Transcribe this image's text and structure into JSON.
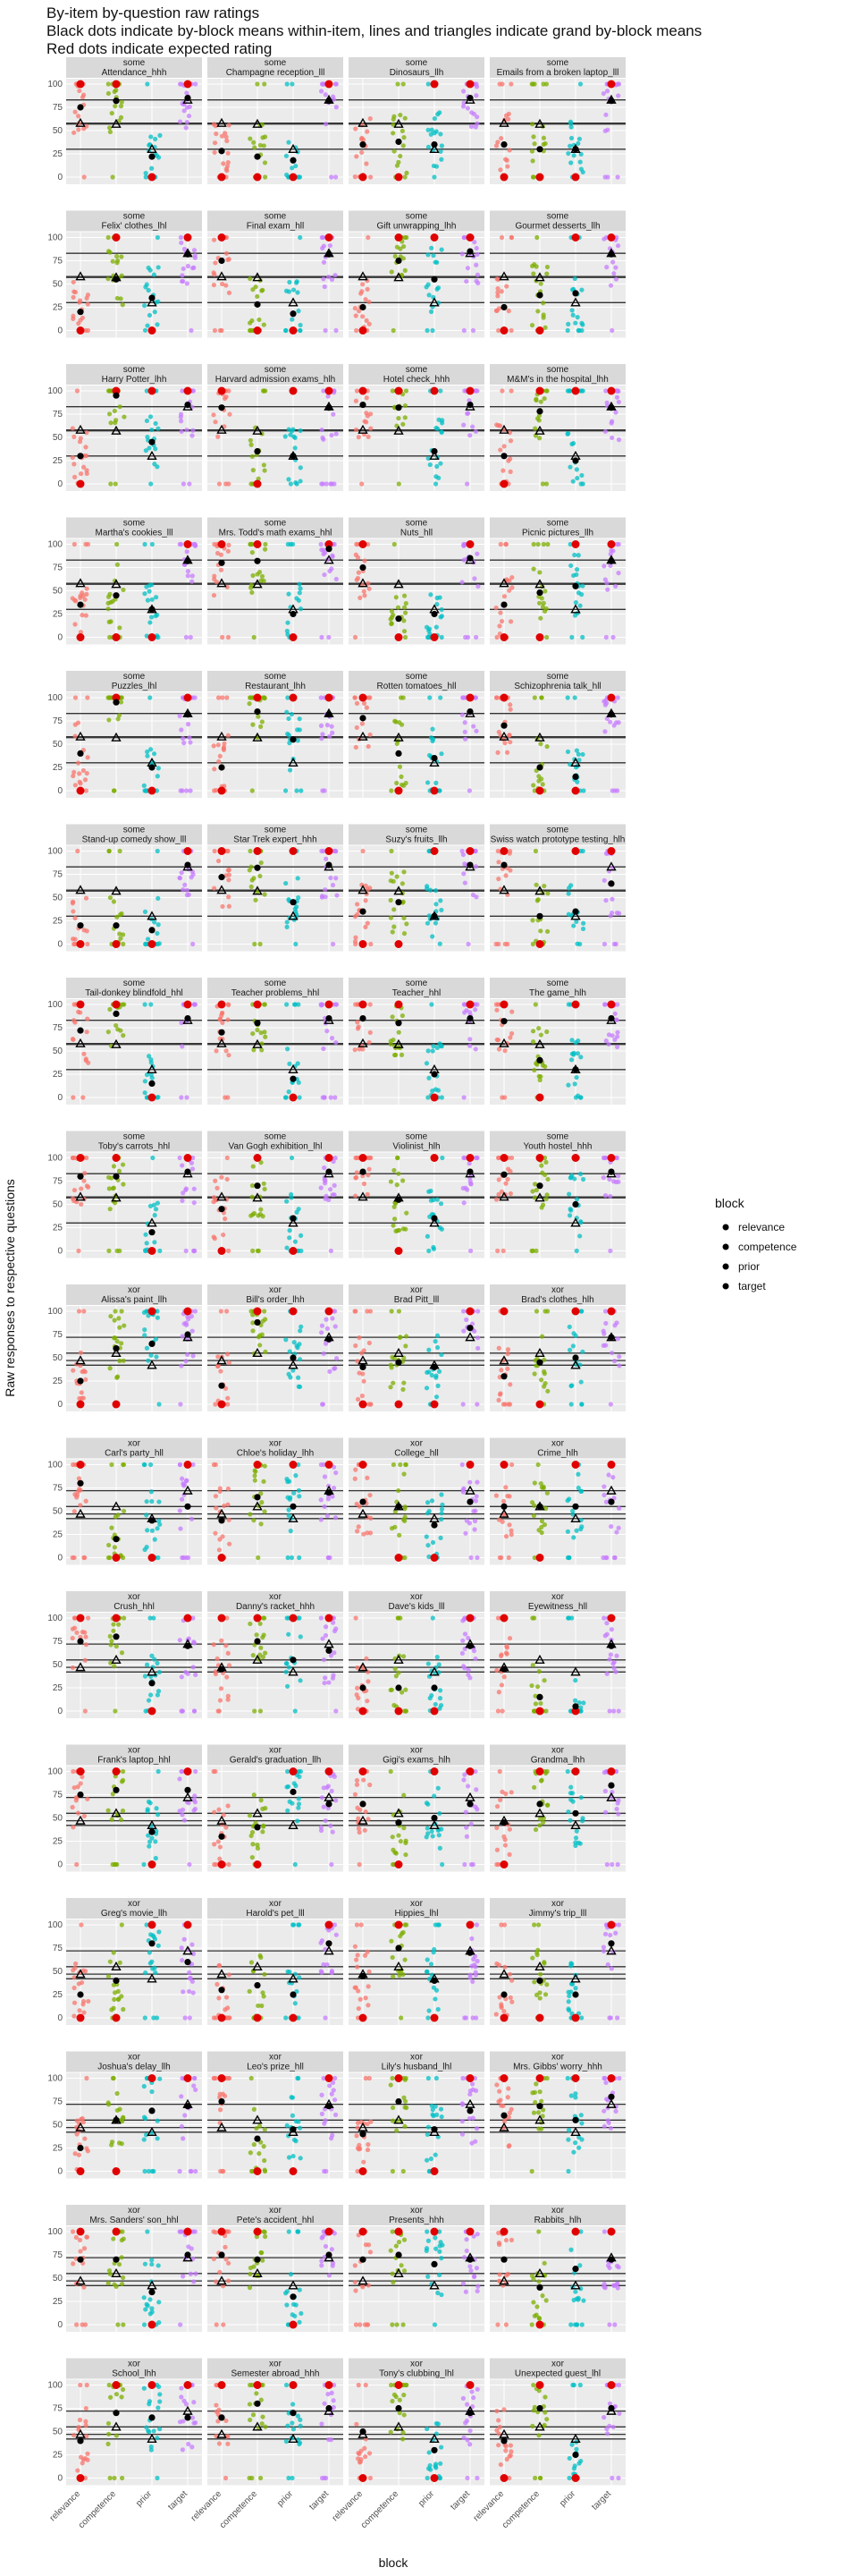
{
  "chart_data": {
    "type": "scatter",
    "title_lines": [
      "By-item by-question raw ratings",
      "Black dots indicate by-block means within-item, lines and triangles indicate grand by-block means",
      "Red dots indicate expected rating"
    ],
    "xlabel": "block",
    "ylabel": "Raw responses to respective questions",
    "categories": [
      "relevance",
      "competence",
      "prior",
      "target"
    ],
    "yticks": [
      0,
      25,
      50,
      75,
      100
    ],
    "ylim": [
      0,
      100
    ],
    "grid": true,
    "legend": {
      "title": "block",
      "entries": [
        "relevance",
        "competence",
        "prior",
        "target"
      ],
      "position": "right"
    },
    "colors": {
      "relevance": "#F8766D",
      "competence": "#7CAE00",
      "prior": "#00BFC4",
      "target": "#C77CFF",
      "expected": "#E00000",
      "mean": "#000000",
      "panel_bg": "#EBEBEB",
      "strip_bg": "#D9D9D9"
    },
    "grand_means": {
      "some": [
        58,
        57,
        30,
        83
      ],
      "xor": [
        47,
        55,
        42,
        72
      ]
    },
    "facets": [
      {
        "group": "some",
        "item": "Attendance_hhh",
        "means": [
          75,
          82,
          22,
          85
        ],
        "expected": [
          100,
          100,
          0,
          100
        ]
      },
      {
        "group": "some",
        "item": "Champagne reception_lll",
        "means": [
          28,
          22,
          18,
          82
        ],
        "expected": [
          0,
          0,
          0,
          100
        ]
      },
      {
        "group": "some",
        "item": "Dinosaurs_llh",
        "means": [
          35,
          38,
          35,
          85
        ],
        "expected": [
          0,
          0,
          100,
          100
        ]
      },
      {
        "group": "some",
        "item": "Emails from a broken laptop_lll",
        "means": [
          35,
          30,
          30,
          82
        ],
        "expected": [
          0,
          0,
          0,
          100
        ]
      },
      {
        "group": "some",
        "item": "Felix' clothes_lhl",
        "means": [
          20,
          55,
          35,
          82
        ],
        "expected": [
          0,
          100,
          0,
          100
        ]
      },
      {
        "group": "some",
        "item": "Final exam_hll",
        "means": [
          75,
          28,
          18,
          82
        ],
        "expected": [
          100,
          0,
          0,
          100
        ]
      },
      {
        "group": "some",
        "item": "Gift unwrapping_lhh",
        "means": [
          25,
          75,
          55,
          85
        ],
        "expected": [
          0,
          100,
          100,
          100
        ]
      },
      {
        "group": "some",
        "item": "Gourmet desserts_llh",
        "means": [
          25,
          38,
          40,
          82
        ],
        "expected": [
          0,
          0,
          100,
          100
        ]
      },
      {
        "group": "some",
        "item": "Harry Potter_lhh",
        "means": [
          30,
          95,
          45,
          85
        ],
        "expected": [
          0,
          100,
          100,
          100
        ]
      },
      {
        "group": "some",
        "item": "Harvard admission exams_hlh",
        "means": [
          82,
          35,
          30,
          82
        ],
        "expected": [
          100,
          0,
          100,
          100
        ]
      },
      {
        "group": "some",
        "item": "Hotel check_hhh",
        "means": [
          85,
          82,
          35,
          85
        ],
        "expected": [
          100,
          100,
          100,
          100
        ]
      },
      {
        "group": "some",
        "item": "M&M's in the hospital_lhh",
        "means": [
          30,
          78,
          25,
          82
        ],
        "expected": [
          0,
          100,
          100,
          100
        ]
      },
      {
        "group": "some",
        "item": "Martha's cookies_lll",
        "means": [
          35,
          45,
          30,
          82
        ],
        "expected": [
          0,
          0,
          0,
          100
        ]
      },
      {
        "group": "some",
        "item": "Mrs. Todd's math exams_hhl",
        "means": [
          80,
          82,
          25,
          95
        ],
        "expected": [
          100,
          100,
          0,
          100
        ]
      },
      {
        "group": "some",
        "item": "Nuts_hll",
        "means": [
          75,
          20,
          25,
          85
        ],
        "expected": [
          100,
          0,
          0,
          100
        ]
      },
      {
        "group": "some",
        "item": "Picnic pictures_llh",
        "means": [
          35,
          48,
          55,
          82
        ],
        "expected": [
          0,
          0,
          100,
          100
        ]
      },
      {
        "group": "some",
        "item": "Puzzles_lhl",
        "means": [
          40,
          95,
          25,
          82
        ],
        "expected": [
          0,
          100,
          0,
          100
        ]
      },
      {
        "group": "some",
        "item": "Restaurant_lhh",
        "means": [
          25,
          85,
          55,
          82
        ],
        "expected": [
          0,
          100,
          100,
          100
        ]
      },
      {
        "group": "some",
        "item": "Rotten tomatoes_hll",
        "means": [
          78,
          40,
          35,
          85
        ],
        "expected": [
          100,
          0,
          0,
          100
        ]
      },
      {
        "group": "some",
        "item": "Schizophrenia talk_hll",
        "means": [
          70,
          25,
          15,
          82
        ],
        "expected": [
          100,
          0,
          0,
          100
        ]
      },
      {
        "group": "some",
        "item": "Stand-up comedy show_lll",
        "means": [
          20,
          20,
          15,
          85
        ],
        "expected": [
          0,
          0,
          0,
          100
        ]
      },
      {
        "group": "some",
        "item": "Star Trek expert_hhh",
        "means": [
          72,
          82,
          45,
          85
        ],
        "expected": [
          100,
          100,
          100,
          100
        ]
      },
      {
        "group": "some",
        "item": "Suzy's fruits_llh",
        "means": [
          35,
          45,
          30,
          85
        ],
        "expected": [
          0,
          0,
          100,
          100
        ]
      },
      {
        "group": "some",
        "item": "Swiss watch prototype testing_hlh",
        "means": [
          85,
          30,
          35,
          65
        ],
        "expected": [
          100,
          0,
          100,
          100
        ]
      },
      {
        "group": "some",
        "item": "Tail-donkey blindfold_hhl",
        "means": [
          72,
          90,
          15,
          85
        ],
        "expected": [
          100,
          100,
          0,
          100
        ]
      },
      {
        "group": "some",
        "item": "Teacher problems_hhl",
        "means": [
          70,
          80,
          20,
          85
        ],
        "expected": [
          100,
          100,
          0,
          100
        ]
      },
      {
        "group": "some",
        "item": "Teacher_hhl",
        "means": [
          85,
          80,
          25,
          85
        ],
        "expected": [
          100,
          100,
          0,
          100
        ]
      },
      {
        "group": "some",
        "item": "The game_hlh",
        "means": [
          82,
          40,
          30,
          85
        ],
        "expected": [
          100,
          0,
          100,
          100
        ]
      },
      {
        "group": "some",
        "item": "Toby's carrots_hhl",
        "means": [
          80,
          80,
          20,
          85
        ],
        "expected": [
          100,
          100,
          0,
          100
        ]
      },
      {
        "group": "some",
        "item": "Van Gogh exhibition_lhl",
        "means": [
          45,
          70,
          35,
          85
        ],
        "expected": [
          0,
          100,
          0,
          100
        ]
      },
      {
        "group": "some",
        "item": "Violinist_hlh",
        "means": [
          85,
          55,
          35,
          85
        ],
        "expected": [
          100,
          0,
          100,
          100
        ]
      },
      {
        "group": "some",
        "item": "Youth hostel_hhh",
        "means": [
          82,
          70,
          50,
          85
        ],
        "expected": [
          100,
          100,
          100,
          100
        ]
      },
      {
        "group": "xor",
        "item": "Alissa's paint_llh",
        "means": [
          25,
          60,
          65,
          75
        ],
        "expected": [
          0,
          0,
          100,
          100
        ]
      },
      {
        "group": "xor",
        "item": "Bill's order_lhh",
        "means": [
          20,
          88,
          50,
          70
        ],
        "expected": [
          0,
          100,
          100,
          100
        ]
      },
      {
        "group": "xor",
        "item": "Brad Pitt_lll",
        "means": [
          40,
          45,
          40,
          82
        ],
        "expected": [
          0,
          0,
          0,
          100
        ]
      },
      {
        "group": "xor",
        "item": "Brad's clothes_hlh",
        "means": [
          30,
          45,
          50,
          72
        ],
        "expected": [
          100,
          0,
          100,
          100
        ]
      },
      {
        "group": "xor",
        "item": "Carl's party_hll",
        "means": [
          80,
          20,
          40,
          55
        ],
        "expected": [
          100,
          0,
          0,
          100
        ]
      },
      {
        "group": "xor",
        "item": "Chloe's holiday_lhh",
        "means": [
          40,
          65,
          55,
          70
        ],
        "expected": [
          0,
          100,
          100,
          100
        ]
      },
      {
        "group": "xor",
        "item": "College_hll",
        "means": [
          60,
          55,
          35,
          60
        ],
        "expected": [
          100,
          0,
          0,
          100
        ]
      },
      {
        "group": "xor",
        "item": "Crime_hlh",
        "means": [
          55,
          55,
          55,
          60
        ],
        "expected": [
          100,
          0,
          100,
          100
        ]
      },
      {
        "group": "xor",
        "item": "Crush_hhl",
        "means": [
          75,
          80,
          30,
          70
        ],
        "expected": [
          100,
          100,
          0,
          100
        ]
      },
      {
        "group": "xor",
        "item": "Danny's racket_hhh",
        "means": [
          45,
          75,
          55,
          65
        ],
        "expected": [
          100,
          100,
          100,
          100
        ]
      },
      {
        "group": "xor",
        "item": "Dave's kids_lll",
        "means": [
          25,
          25,
          25,
          70
        ],
        "expected": [
          0,
          0,
          0,
          100
        ]
      },
      {
        "group": "xor",
        "item": "Eyewitness_hll",
        "means": [
          45,
          15,
          5,
          70
        ],
        "expected": [
          100,
          0,
          0,
          100
        ]
      },
      {
        "group": "xor",
        "item": "Frank's laptop_hhl",
        "means": [
          75,
          80,
          35,
          80
        ],
        "expected": [
          100,
          100,
          0,
          100
        ]
      },
      {
        "group": "xor",
        "item": "Gerald's graduation_llh",
        "means": [
          30,
          40,
          78,
          65
        ],
        "expected": [
          0,
          0,
          100,
          100
        ]
      },
      {
        "group": "xor",
        "item": "Gigi's exams_hlh",
        "means": [
          65,
          45,
          50,
          65
        ],
        "expected": [
          100,
          0,
          100,
          100
        ]
      },
      {
        "group": "xor",
        "item": "Grandma_lhh",
        "means": [
          45,
          65,
          55,
          85
        ],
        "expected": [
          0,
          100,
          100,
          100
        ]
      },
      {
        "group": "xor",
        "item": "Greg's movie_llh",
        "means": [
          25,
          40,
          80,
          60
        ],
        "expected": [
          0,
          0,
          100,
          100
        ]
      },
      {
        "group": "xor",
        "item": "Harold's pet_lll",
        "means": [
          30,
          35,
          25,
          80
        ],
        "expected": [
          0,
          0,
          0,
          100
        ]
      },
      {
        "group": "xor",
        "item": "Hippies_lhl",
        "means": [
          45,
          75,
          40,
          70
        ],
        "expected": [
          0,
          100,
          0,
          100
        ]
      },
      {
        "group": "xor",
        "item": "Jimmy's trip_lll",
        "means": [
          25,
          40,
          25,
          80
        ],
        "expected": [
          0,
          0,
          0,
          100
        ]
      },
      {
        "group": "xor",
        "item": "Joshua's delay_llh",
        "means": [
          25,
          55,
          65,
          70
        ],
        "expected": [
          0,
          0,
          100,
          100
        ]
      },
      {
        "group": "xor",
        "item": "Leo's prize_hll",
        "means": [
          75,
          35,
          45,
          70
        ],
        "expected": [
          100,
          0,
          0,
          100
        ]
      },
      {
        "group": "xor",
        "item": "Lily's husband_lhl",
        "means": [
          40,
          75,
          45,
          65
        ],
        "expected": [
          0,
          100,
          0,
          100
        ]
      },
      {
        "group": "xor",
        "item": "Mrs. Gibbs' worry_hhh",
        "means": [
          60,
          70,
          55,
          80
        ],
        "expected": [
          100,
          100,
          100,
          100
        ]
      },
      {
        "group": "xor",
        "item": "Mrs. Sanders' son_hhl",
        "means": [
          70,
          70,
          35,
          75
        ],
        "expected": [
          100,
          100,
          0,
          100
        ]
      },
      {
        "group": "xor",
        "item": "Pete's accident_hhl",
        "means": [
          75,
          70,
          30,
          75
        ],
        "expected": [
          100,
          100,
          0,
          100
        ]
      },
      {
        "group": "xor",
        "item": "Presents_hhh",
        "means": [
          70,
          75,
          65,
          70
        ],
        "expected": [
          100,
          100,
          100,
          100
        ]
      },
      {
        "group": "xor",
        "item": "Rabbits_hlh",
        "means": [
          70,
          40,
          60,
          70
        ],
        "expected": [
          100,
          0,
          100,
          100
        ]
      },
      {
        "group": "xor",
        "item": "School_lhh",
        "means": [
          40,
          70,
          65,
          65
        ],
        "expected": [
          0,
          100,
          100,
          100
        ]
      },
      {
        "group": "xor",
        "item": "Semester abroad_hhh",
        "means": [
          65,
          80,
          70,
          75
        ],
        "expected": [
          100,
          100,
          100,
          100
        ]
      },
      {
        "group": "xor",
        "item": "Tony's clubbing_lhl",
        "means": [
          50,
          75,
          30,
          70
        ],
        "expected": [
          0,
          100,
          0,
          100
        ]
      },
      {
        "group": "xor",
        "item": "Unexpected guest_lhl",
        "means": [
          40,
          75,
          25,
          75
        ],
        "expected": [
          0,
          100,
          0,
          100
        ]
      }
    ]
  }
}
